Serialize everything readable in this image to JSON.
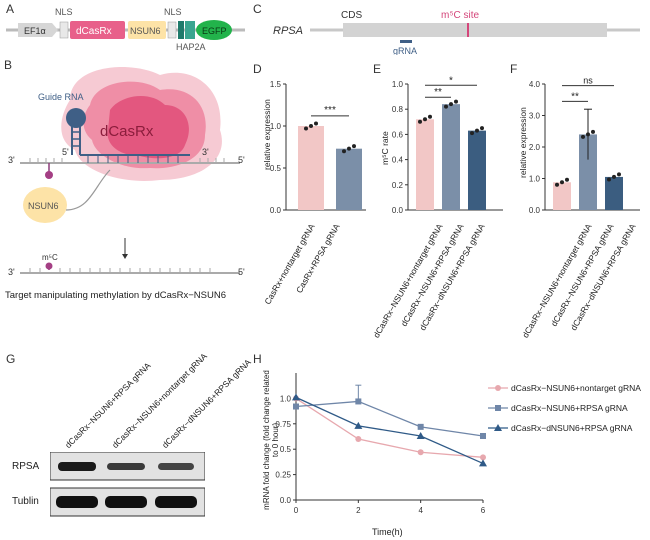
{
  "panels": {
    "A": "A",
    "B": "B",
    "C": "C",
    "D": "D",
    "E": "E",
    "F": "F",
    "G": "G",
    "H": "H"
  },
  "construct": {
    "ef1a": "EF1α",
    "nls1": "NLS",
    "dcasrx": "dCasRx",
    "nsun6": "NSUN6",
    "nls2": "NLS",
    "hap2a": "HAP2A",
    "egfp": "EGFP",
    "colors": {
      "dcasrx": "#e8608a",
      "nsun6": "#fde3a7",
      "hap2a": "#3aa590",
      "egfp": "#22b34b"
    }
  },
  "schematic": {
    "guide_rna": "Guide RNA",
    "dcasrx": "dCasRx",
    "nsun6": "NSUN6",
    "five_prime": "5'",
    "three_prime": "3'",
    "m5c": "m⁵C",
    "caption": "Target manipulating methylation by dCasRx−NSUN6"
  },
  "rpsa_map": {
    "gene": "RPSA",
    "cds": "CDS",
    "site": "m⁵C site",
    "grna": "gRNA"
  },
  "chart_data": [
    {
      "id": "D",
      "type": "bar",
      "ylabel": "relative expression",
      "ylim": [
        0,
        1.5
      ],
      "yticks": [
        "0.0",
        "0.5",
        "1.0",
        "1.5"
      ],
      "categories": [
        "CasRx+nontarget gRNA",
        "CasRx+RPSA gRNA"
      ],
      "values": [
        1.0,
        0.73
      ],
      "colors": [
        "#f2c7c6",
        "#7b8fa8"
      ],
      "sig": "***"
    },
    {
      "id": "E",
      "type": "bar",
      "ylabel": "m⁵C rate",
      "ylim": [
        0,
        1.0
      ],
      "yticks": [
        "0.0",
        "0.2",
        "0.4",
        "0.6",
        "0.8",
        "1.0"
      ],
      "categories": [
        "dCasRx−NSUN6+nontarget gRNA",
        "dCasRx−NSUN6+RPSA gRNA",
        "dCasRx−dNSUN6+RPSA gRNA"
      ],
      "values": [
        0.72,
        0.84,
        0.63
      ],
      "colors": [
        "#f2c7c6",
        "#7b8fa8",
        "#3b5d80"
      ],
      "sig": [
        "**",
        "*"
      ]
    },
    {
      "id": "F",
      "type": "bar",
      "ylabel": "relative expression",
      "ylim": [
        0,
        4.0
      ],
      "yticks": [
        "0.0",
        "1.0",
        "2.0",
        "3.0",
        "4.0"
      ],
      "categories": [
        "dCasRx−NSUN6+nontarget gRNA",
        "dCasRx−NSUN6+RPSA gRNA",
        "dCasRx−dNSUN6+RPSA gRNA"
      ],
      "values": [
        0.88,
        2.4,
        1.05
      ],
      "colors": [
        "#f2c7c6",
        "#7b8fa8",
        "#3b5d80"
      ],
      "sig": [
        "**",
        "ns"
      ]
    },
    {
      "id": "H",
      "type": "line",
      "xlabel": "Time(h)",
      "ylabel": "mRNA fold change (fold change related to 0 hour)",
      "x": [
        0,
        2,
        4,
        6
      ],
      "ylim": [
        0,
        1.25
      ],
      "yticks": [
        "0.0",
        "0.25",
        "0.5",
        "0.75",
        "1.0"
      ],
      "series": [
        {
          "name": "dCasRx−NSUN6+nontarget gRNA",
          "values": [
            1.0,
            0.6,
            0.47,
            0.42
          ],
          "color": "#e7a8ae",
          "marker": "circle"
        },
        {
          "name": "dCasRx−NSUN6+RPSA gRNA",
          "values": [
            0.92,
            0.97,
            0.72,
            0.63
          ],
          "color": "#6f86a8",
          "marker": "square"
        },
        {
          "name": "dCasRx−dNSUN6+RPSA gRNA",
          "values": [
            1.01,
            0.73,
            0.63,
            0.36
          ],
          "color": "#2f5a87",
          "marker": "triangle"
        }
      ]
    }
  ],
  "blot": {
    "lanes": [
      "dCasRx−NSUN6+RPSA gRNA",
      "dCasRx−NSUN6+nontarget gRNA",
      "dCasRx−dNSUN6+RPSA gRNA"
    ],
    "rows": [
      "RPSA",
      "Tublin"
    ]
  }
}
